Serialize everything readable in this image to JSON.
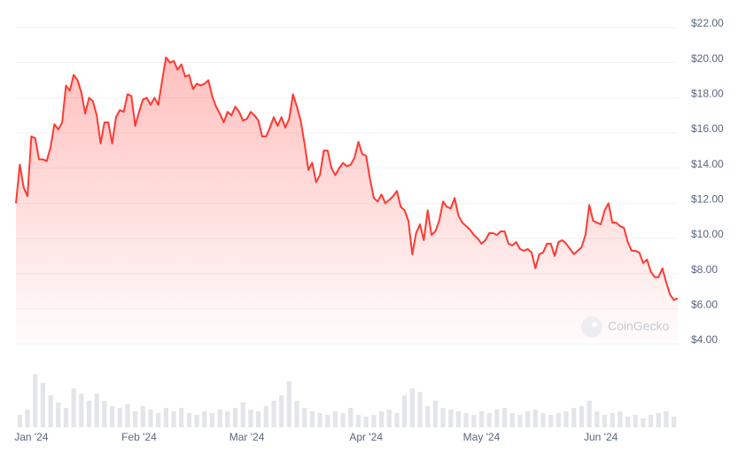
{
  "chart_data": [
    {
      "type": "line",
      "color": "#ff3a33",
      "watermark": "CoinGecko",
      "values": [
        11.8,
        14.0,
        12.7,
        12.2,
        15.6,
        15.5,
        14.3,
        14.3,
        14.2,
        15.0,
        16.3,
        16.0,
        16.4,
        18.5,
        18.2,
        19.1,
        18.8,
        18.1,
        16.9,
        17.8,
        17.6,
        16.8,
        15.2,
        16.4,
        16.4,
        15.2,
        16.7,
        17.1,
        17.0,
        18.0,
        17.9,
        16.2,
        17.0,
        17.7,
        17.8,
        17.4,
        17.8,
        17.4,
        18.8,
        20.1,
        19.8,
        19.9,
        19.4,
        19.7,
        19.0,
        19.1,
        18.3,
        18.6,
        18.5,
        18.6,
        18.8,
        17.9,
        17.3,
        16.9,
        16.4,
        17.0,
        16.8,
        17.3,
        17.0,
        16.5,
        16.6,
        17.0,
        16.8,
        16.5,
        15.6,
        15.6,
        16.1,
        16.7,
        16.2,
        16.7,
        16.1,
        16.6,
        18.0,
        17.3,
        16.5,
        15.2,
        13.7,
        14.1,
        13.0,
        13.4,
        14.8,
        14.8,
        13.8,
        13.4,
        13.8,
        14.1,
        13.9,
        14.0,
        14.4,
        15.3,
        14.6,
        14.5,
        13.2,
        12.1,
        11.9,
        12.3,
        11.8,
        12.0,
        12.2,
        12.5,
        11.6,
        11.4,
        10.8,
        8.9,
        10.1,
        10.6,
        9.7,
        11.4,
        10.0,
        10.2,
        10.8,
        11.9,
        11.6,
        11.5,
        12.1,
        11.1,
        10.7,
        10.5,
        10.3,
        10.0,
        9.8,
        9.5,
        9.7,
        10.1,
        10.1,
        10.0,
        10.2,
        10.2,
        9.5,
        9.4,
        9.6,
        9.2,
        9.1,
        9.2,
        9.0,
        8.1,
        8.9,
        9.0,
        9.5,
        9.5,
        8.8,
        9.6,
        9.7,
        9.5,
        9.2,
        8.9,
        9.1,
        9.3,
        10.0,
        11.7,
        10.8,
        10.7,
        10.6,
        11.4,
        11.8,
        10.7,
        10.7,
        10.5,
        10.4,
        9.6,
        9.1,
        9.1,
        9.0,
        8.4,
        8.6,
        7.9,
        7.6,
        7.6,
        8.1,
        7.3,
        6.6,
        6.3,
        6.4
      ],
      "xlim": [
        0,
        172
      ],
      "xticks": [
        {
          "value": 4,
          "label": "Jan '24"
        },
        {
          "value": 32,
          "label": "Feb '24"
        },
        {
          "value": 60,
          "label": "Mar '24"
        },
        {
          "value": 91,
          "label": "Apr '24"
        },
        {
          "value": 121,
          "label": "May '24"
        },
        {
          "value": 152,
          "label": "Jun '24"
        }
      ],
      "ylim": [
        4,
        22
      ],
      "yticks": [
        {
          "value": 4,
          "label": "$4.00"
        },
        {
          "value": 6,
          "label": "$6.00"
        },
        {
          "value": 8,
          "label": "$8.00"
        },
        {
          "value": 10,
          "label": "$10.00"
        },
        {
          "value": 12,
          "label": "$12.00"
        },
        {
          "value": 14,
          "label": "$14.00"
        },
        {
          "value": 16,
          "label": "$16.00"
        },
        {
          "value": 18,
          "label": "$18.00"
        },
        {
          "value": 20,
          "label": "$20.00"
        },
        {
          "value": 22,
          "label": "$22.00"
        }
      ],
      "grid": true
    },
    {
      "type": "bar",
      "color": "#e3e5e8",
      "values": [
        14,
        20,
        60,
        50,
        36,
        28,
        22,
        44,
        38,
        30,
        38,
        30,
        24,
        22,
        26,
        18,
        24,
        20,
        16,
        22,
        18,
        22,
        16,
        14,
        18,
        16,
        20,
        18,
        22,
        28,
        20,
        18,
        24,
        30,
        36,
        52,
        30,
        22,
        18,
        16,
        14,
        18,
        16,
        22,
        14,
        12,
        14,
        18,
        20,
        16,
        36,
        44,
        40,
        24,
        30,
        22,
        20,
        18,
        16,
        14,
        18,
        16,
        20,
        22,
        16,
        14,
        18,
        20,
        16,
        14,
        16,
        18,
        22,
        24,
        30,
        18,
        14,
        16,
        18,
        12,
        14,
        10,
        14,
        16,
        18,
        12
      ],
      "ylim": [
        0,
        65
      ]
    }
  ]
}
